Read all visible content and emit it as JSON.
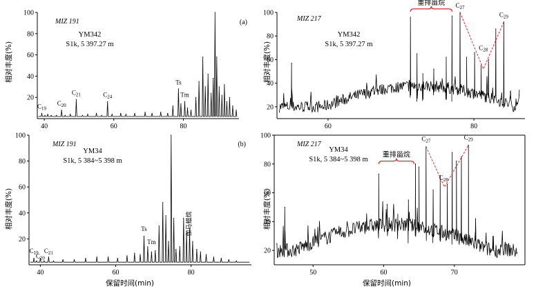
{
  "figure": {
    "ylabel": "相对丰度(%)",
    "xlabel": "保留时间(min)"
  },
  "chart_data": [
    {
      "type": "line",
      "panel": "(a)",
      "ion": "MIZ 191",
      "well": "YM342",
      "strata": "S1k, 5 397.27 m",
      "xlim": [
        38,
        96
      ],
      "ylim": [
        0,
        100
      ],
      "xticks": [
        40,
        60,
        80
      ],
      "yticks": [
        20,
        40,
        60,
        80,
        100
      ],
      "xticklabels": [
        "40",
        "60",
        "80"
      ],
      "yticklabels": [
        "20",
        "40",
        "60",
        "80",
        "100"
      ],
      "baseline": 2,
      "peaks": [
        {
          "x": 39.3,
          "y": 5
        },
        {
          "x": 40.2,
          "y": 3
        },
        {
          "x": 41.0,
          "y": 4
        },
        {
          "x": 42.0,
          "y": 3
        },
        {
          "x": 43.5,
          "y": 3
        },
        {
          "x": 45.0,
          "y": 8
        },
        {
          "x": 46.0,
          "y": 3
        },
        {
          "x": 47.5,
          "y": 4
        },
        {
          "x": 49.2,
          "y": 18
        },
        {
          "x": 51.0,
          "y": 3
        },
        {
          "x": 52.5,
          "y": 4
        },
        {
          "x": 55.0,
          "y": 5
        },
        {
          "x": 56.5,
          "y": 3
        },
        {
          "x": 58.2,
          "y": 16
        },
        {
          "x": 59.5,
          "y": 4
        },
        {
          "x": 62.0,
          "y": 5
        },
        {
          "x": 63.5,
          "y": 4
        },
        {
          "x": 66.0,
          "y": 5
        },
        {
          "x": 69.0,
          "y": 6
        },
        {
          "x": 71.0,
          "y": 5
        },
        {
          "x": 73.5,
          "y": 6
        },
        {
          "x": 75.5,
          "y": 5
        },
        {
          "x": 77.0,
          "y": 12
        },
        {
          "x": 78.6,
          "y": 28
        },
        {
          "x": 79.3,
          "y": 14
        },
        {
          "x": 80.4,
          "y": 16
        },
        {
          "x": 81.2,
          "y": 10
        },
        {
          "x": 82.2,
          "y": 8
        },
        {
          "x": 83.6,
          "y": 20
        },
        {
          "x": 84.5,
          "y": 35
        },
        {
          "x": 85.6,
          "y": 58
        },
        {
          "x": 86.3,
          "y": 30
        },
        {
          "x": 87.1,
          "y": 42
        },
        {
          "x": 88.0,
          "y": 24
        },
        {
          "x": 88.6,
          "y": 38
        },
        {
          "x": 89.1,
          "y": 100
        },
        {
          "x": 89.6,
          "y": 58
        },
        {
          "x": 90.3,
          "y": 30
        },
        {
          "x": 91.1,
          "y": 22
        },
        {
          "x": 91.8,
          "y": 32
        },
        {
          "x": 92.5,
          "y": 16
        },
        {
          "x": 93.3,
          "y": 20
        },
        {
          "x": 94.2,
          "y": 12
        },
        {
          "x": 95.2,
          "y": 8
        }
      ],
      "annotations": [
        {
          "text": "C19",
          "x": 39.3,
          "y": 8
        },
        {
          "text": "C20",
          "x": 45.0,
          "y": 11
        },
        {
          "text": "C21",
          "x": 49.2,
          "y": 21
        },
        {
          "text": "C24",
          "x": 58.2,
          "y": 19
        },
        {
          "text": "Ts",
          "x": 78.6,
          "y": 31
        },
        {
          "text": "Tm",
          "x": 80.4,
          "y": 19
        }
      ]
    },
    {
      "type": "line",
      "panel": "",
      "ion": "MIZ 217",
      "well": "YM342",
      "strata": "S1k, 5 397.27 m",
      "xlim": [
        53,
        87
      ],
      "ylim": [
        10,
        100
      ],
      "xticks": [
        60,
        80
      ],
      "yticks": [
        20,
        40,
        60,
        80,
        100
      ],
      "xticklabels": [
        "60",
        "80"
      ],
      "yticklabels": [
        "20",
        "40",
        "60",
        "80",
        "100"
      ],
      "peaks": [
        {
          "x": 55.0,
          "y": 57
        },
        {
          "x": 71.3,
          "y": 96
        },
        {
          "x": 72.2,
          "y": 65
        },
        {
          "x": 73.0,
          "y": 48
        },
        {
          "x": 74.5,
          "y": 52
        },
        {
          "x": 76.2,
          "y": 62
        },
        {
          "x": 77.0,
          "y": 97
        },
        {
          "x": 78.1,
          "y": 100
        },
        {
          "x": 79.0,
          "y": 62
        },
        {
          "x": 80.1,
          "y": 66
        },
        {
          "x": 81.0,
          "y": 55
        },
        {
          "x": 82.0,
          "y": 60
        },
        {
          "x": 83.0,
          "y": 86
        },
        {
          "x": 84.1,
          "y": 92
        },
        {
          "x": 85.0,
          "y": 33
        },
        {
          "x": 86.2,
          "y": 30
        }
      ],
      "annotations": [
        {
          "text": "C27",
          "x": 78.1,
          "y": 103
        },
        {
          "text": "C28",
          "x": 81.3,
          "y": 67
        },
        {
          "text": "C29",
          "x": 84.1,
          "y": 95
        }
      ],
      "bracket": {
        "label": "重排甾烷",
        "x1": 71.3,
        "x2": 77.0,
        "y": 103
      },
      "v_lines": [
        [
          78.1,
          100
        ],
        [
          81.3,
          52
        ],
        [
          84.1,
          92
        ]
      ]
    },
    {
      "type": "line",
      "panel": "(b)",
      "ion": "MIZ 191",
      "well": "YM34",
      "strata": "S1k, 5 384~5 398 m",
      "xlim": [
        37,
        96
      ],
      "ylim": [
        0,
        100
      ],
      "xticks": [
        40,
        60,
        80
      ],
      "yticks": [
        20,
        40,
        60,
        80,
        100
      ],
      "xticklabels": [
        "40",
        "60",
        "80"
      ],
      "yticklabels": [
        "20",
        "40",
        "60",
        "80",
        "100"
      ],
      "baseline": 2,
      "peaks": [
        {
          "x": 38.3,
          "y": 5
        },
        {
          "x": 39.0,
          "y": 3
        },
        {
          "x": 40.0,
          "y": 5
        },
        {
          "x": 41.0,
          "y": 3
        },
        {
          "x": 42.2,
          "y": 6
        },
        {
          "x": 43.5,
          "y": 3
        },
        {
          "x": 46.0,
          "y": 4
        },
        {
          "x": 49.0,
          "y": 4
        },
        {
          "x": 52.0,
          "y": 5
        },
        {
          "x": 55.0,
          "y": 6
        },
        {
          "x": 58.0,
          "y": 6
        },
        {
          "x": 60.5,
          "y": 5
        },
        {
          "x": 63.0,
          "y": 7
        },
        {
          "x": 65.0,
          "y": 9
        },
        {
          "x": 66.5,
          "y": 8
        },
        {
          "x": 67.5,
          "y": 22
        },
        {
          "x": 68.5,
          "y": 14
        },
        {
          "x": 69.5,
          "y": 10
        },
        {
          "x": 70.5,
          "y": 11
        },
        {
          "x": 71.5,
          "y": 30
        },
        {
          "x": 72.5,
          "y": 48
        },
        {
          "x": 73.3,
          "y": 38
        },
        {
          "x": 74.0,
          "y": 18
        },
        {
          "x": 74.7,
          "y": 100
        },
        {
          "x": 75.4,
          "y": 36
        },
        {
          "x": 76.0,
          "y": 12
        },
        {
          "x": 77.0,
          "y": 14
        },
        {
          "x": 78.0,
          "y": 36
        },
        {
          "x": 78.8,
          "y": 26
        },
        {
          "x": 79.6,
          "y": 28
        },
        {
          "x": 80.4,
          "y": 18
        },
        {
          "x": 81.5,
          "y": 12
        },
        {
          "x": 82.5,
          "y": 10
        },
        {
          "x": 84.0,
          "y": 8
        },
        {
          "x": 86.0,
          "y": 6
        },
        {
          "x": 88.0,
          "y": 5
        },
        {
          "x": 90.0,
          "y": 4
        },
        {
          "x": 92.0,
          "y": 3
        }
      ],
      "annotations": [
        {
          "text": "C19",
          "x": 38.3,
          "y": 8
        },
        {
          "text": "C20",
          "x": 40.0,
          "y": 4
        },
        {
          "text": "C21",
          "x": 42.2,
          "y": 8
        },
        {
          "text": "Ts",
          "x": 67.5,
          "y": 25
        },
        {
          "text": "Tm",
          "x": 69.5,
          "y": 15
        }
      ],
      "vertical_label": {
        "text": "伽马蜡烷",
        "x": 79.2,
        "y": 22
      }
    },
    {
      "type": "line",
      "panel": "",
      "ion": "MIZ 217",
      "well": "YM34",
      "strata": "S1k, 5 384~5 398 m",
      "xlim": [
        44.5,
        80
      ],
      "ylim": [
        10,
        100
      ],
      "xticks": [
        50,
        60,
        70
      ],
      "yticks": [
        20,
        40,
        60,
        80,
        100
      ],
      "xticklabels": [
        "50",
        "60",
        "70"
      ],
      "yticklabels": [
        "20",
        "40",
        "60",
        "80",
        "100"
      ],
      "peaks": [
        {
          "x": 46.0,
          "y": 50
        },
        {
          "x": 59.3,
          "y": 73
        },
        {
          "x": 60.5,
          "y": 52
        },
        {
          "x": 62.0,
          "y": 45
        },
        {
          "x": 63.5,
          "y": 55
        },
        {
          "x": 64.5,
          "y": 80
        },
        {
          "x": 65.0,
          "y": 78
        },
        {
          "x": 66.0,
          "y": 92
        },
        {
          "x": 67.0,
          "y": 62
        },
        {
          "x": 68.0,
          "y": 72
        },
        {
          "x": 69.0,
          "y": 66
        },
        {
          "x": 69.7,
          "y": 88
        },
        {
          "x": 70.3,
          "y": 82
        },
        {
          "x": 71.0,
          "y": 85
        },
        {
          "x": 72.0,
          "y": 93
        },
        {
          "x": 73.0,
          "y": 42
        },
        {
          "x": 74.5,
          "y": 32
        },
        {
          "x": 75.5,
          "y": 22
        }
      ],
      "annotations": [
        {
          "text": "C27",
          "x": 66.0,
          "y": 95
        },
        {
          "text": "C28",
          "x": 68.5,
          "y": 68
        },
        {
          "text": "C29",
          "x": 72.0,
          "y": 96
        }
      ],
      "bracket": {
        "label": "重排甾烷",
        "x1": 59.3,
        "x2": 64.3,
        "y": 82
      },
      "v_lines": [
        [
          66.0,
          92
        ],
        [
          68.6,
          64
        ],
        [
          72.0,
          93
        ]
      ]
    }
  ]
}
